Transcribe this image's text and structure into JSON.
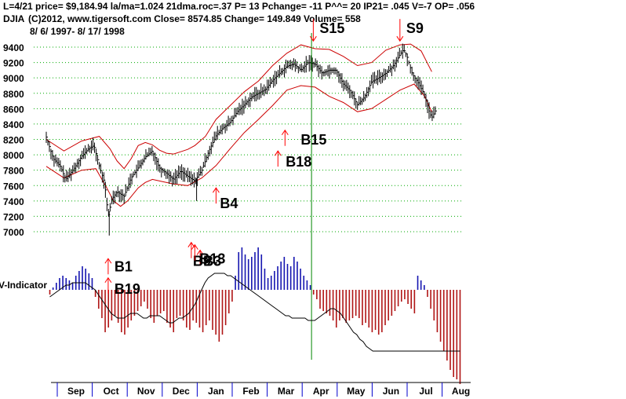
{
  "header": {
    "line1": "L=4/21  price= $9,184.94  la/ma=1.024 21dma.roc=.37 P=  13 Pchange= -11 P^^= 20 IP21= .045 V=-7 OP= .056",
    "symbol": "DJIA",
    "line2": "(C)2012, www.tigersoft.com    Close=  8574.85  Change= 149.849 Volume= 558",
    "date_range": "8/ 6/ 1997- 8/ 17/ 1998"
  },
  "colors": {
    "price": "#000000",
    "band": "#cc0000",
    "grid": "#00aa00",
    "signal": "#ff0000",
    "signal_text": "#000000",
    "ind_pos": "#1515b0",
    "ind_neg": "#b01515",
    "ind_ma": "#000000",
    "axis_blue": "#0000cc",
    "vline": "#008800"
  },
  "chart_data": {
    "type": "line",
    "title": "DJIA",
    "y_ticks": [
      "9400",
      "9200",
      "9000",
      "8800",
      "8600",
      "8400",
      "8200",
      "8000",
      "7800",
      "7600",
      "7400",
      "7200",
      "7000"
    ],
    "ylim": [
      7000,
      9400
    ],
    "xlim": [
      0,
      12
    ],
    "months": [
      "Sep",
      "Oct",
      "Nov",
      "Dec",
      "Jan",
      "Feb",
      "Mar",
      "Apr",
      "May",
      "Jun",
      "Jul",
      "Aug"
    ],
    "month_dividers": [
      0.5,
      1.5,
      2.5,
      3.5,
      4.5,
      5.5,
      6.5,
      7.5,
      8.5,
      9.5,
      10.5,
      11.5
    ],
    "price_series": {
      "name": "DJIA close",
      "points": [
        [
          0,
          8230
        ],
        [
          0.2,
          7950
        ],
        [
          0.4,
          7850
        ],
        [
          0.55,
          7680
        ],
        [
          0.8,
          7830
        ],
        [
          1.0,
          7980
        ],
        [
          1.2,
          8080
        ],
        [
          1.35,
          8120
        ],
        [
          1.5,
          7850
        ],
        [
          1.65,
          7640
        ],
        [
          1.75,
          7200
        ],
        [
          1.85,
          7420
        ],
        [
          2.0,
          7520
        ],
        [
          2.2,
          7460
        ],
        [
          2.4,
          7700
        ],
        [
          2.6,
          7830
        ],
        [
          2.8,
          7970
        ],
        [
          3.0,
          8050
        ],
        [
          3.2,
          7830
        ],
        [
          3.4,
          7760
        ],
        [
          3.6,
          7680
        ],
        [
          3.8,
          7790
        ],
        [
          4.0,
          7720
        ],
        [
          4.2,
          7660
        ],
        [
          4.4,
          7800
        ],
        [
          4.6,
          8050
        ],
        [
          4.8,
          8250
        ],
        [
          5.0,
          8350
        ],
        [
          5.2,
          8420
        ],
        [
          5.4,
          8560
        ],
        [
          5.6,
          8650
        ],
        [
          5.8,
          8750
        ],
        [
          6.0,
          8800
        ],
        [
          6.2,
          8850
        ],
        [
          6.4,
          8970
        ],
        [
          6.6,
          9060
        ],
        [
          6.8,
          9150
        ],
        [
          7.0,
          9180
        ],
        [
          7.2,
          9100
        ],
        [
          7.4,
          9200
        ],
        [
          7.6,
          9180
        ],
        [
          7.8,
          9060
        ],
        [
          8.0,
          9100
        ],
        [
          8.2,
          9100
        ],
        [
          8.4,
          8920
        ],
        [
          8.6,
          8830
        ],
        [
          8.8,
          8650
        ],
        [
          9.0,
          8750
        ],
        [
          9.2,
          8950
        ],
        [
          9.4,
          9000
        ],
        [
          9.6,
          9060
        ],
        [
          9.8,
          9150
        ],
        [
          10.0,
          9300
        ],
        [
          10.1,
          9370
        ],
        [
          10.2,
          9280
        ],
        [
          10.35,
          9050
        ],
        [
          10.5,
          8950
        ],
        [
          10.7,
          8780
        ],
        [
          10.8,
          8600
        ],
        [
          10.9,
          8480
        ],
        [
          11.0,
          8570
        ]
      ]
    },
    "upper_band": {
      "name": "upper band",
      "points": [
        [
          0,
          8200
        ],
        [
          0.5,
          8050
        ],
        [
          1.0,
          8180
        ],
        [
          1.5,
          8240
        ],
        [
          1.8,
          8080
        ],
        [
          2.0,
          7920
        ],
        [
          2.2,
          7820
        ],
        [
          2.4,
          7950
        ],
        [
          2.6,
          8120
        ],
        [
          2.8,
          8160
        ],
        [
          3.0,
          8130
        ],
        [
          3.2,
          8060
        ],
        [
          3.4,
          8020
        ],
        [
          3.6,
          8010
        ],
        [
          3.8,
          8040
        ],
        [
          4.0,
          8070
        ],
        [
          4.2,
          8120
        ],
        [
          4.5,
          8240
        ],
        [
          4.8,
          8460
        ],
        [
          5.2,
          8640
        ],
        [
          5.6,
          8820
        ],
        [
          6.0,
          8960
        ],
        [
          6.4,
          9160
        ],
        [
          6.8,
          9320
        ],
        [
          7.2,
          9430
        ],
        [
          7.6,
          9380
        ],
        [
          8.0,
          9370
        ],
        [
          8.4,
          9280
        ],
        [
          8.8,
          9160
        ],
        [
          9.2,
          9200
        ],
        [
          9.6,
          9360
        ],
        [
          10.0,
          9430
        ],
        [
          10.3,
          9440
        ],
        [
          10.6,
          9350
        ],
        [
          10.9,
          9080
        ]
      ]
    },
    "lower_band": {
      "name": "lower band",
      "points": [
        [
          0,
          7850
        ],
        [
          0.5,
          7700
        ],
        [
          1.0,
          7800
        ],
        [
          1.4,
          7820
        ],
        [
          1.7,
          7580
        ],
        [
          1.9,
          7400
        ],
        [
          2.1,
          7330
        ],
        [
          2.3,
          7400
        ],
        [
          2.6,
          7570
        ],
        [
          2.8,
          7640
        ],
        [
          3.0,
          7680
        ],
        [
          3.3,
          7650
        ],
        [
          3.6,
          7620
        ],
        [
          4.0,
          7600
        ],
        [
          4.4,
          7700
        ],
        [
          4.8,
          7860
        ],
        [
          5.2,
          8080
        ],
        [
          5.6,
          8290
        ],
        [
          6.0,
          8460
        ],
        [
          6.4,
          8640
        ],
        [
          6.8,
          8840
        ],
        [
          7.2,
          8900
        ],
        [
          7.6,
          8880
        ],
        [
          8.0,
          8760
        ],
        [
          8.4,
          8680
        ],
        [
          8.8,
          8560
        ],
        [
          9.2,
          8600
        ],
        [
          9.6,
          8720
        ],
        [
          10.0,
          8840
        ],
        [
          10.4,
          8920
        ],
        [
          10.7,
          8760
        ],
        [
          10.9,
          8560
        ]
      ]
    },
    "indicator": {
      "name": "V-Indicator",
      "label": "V-Indicator",
      "values": [
        -2,
        1,
        3,
        5,
        6,
        5,
        4,
        3,
        6,
        8,
        10,
        9,
        7,
        5,
        -3,
        -8,
        -12,
        -18,
        -16,
        -13,
        -11,
        -14,
        -18,
        -19,
        -16,
        -13,
        -11,
        -9,
        -7,
        -5,
        -8,
        -12,
        -14,
        -11,
        -10,
        -9,
        -14,
        -16,
        -18,
        -12,
        -11,
        -13,
        -16,
        -17,
        -13,
        -14,
        -16,
        -18,
        -15,
        -13,
        -17,
        -19,
        -22,
        -19,
        -15,
        -10,
        -5,
        6,
        16,
        18,
        15,
        13,
        14,
        16,
        18,
        15,
        9,
        5,
        6,
        8,
        10,
        12,
        14,
        11,
        10,
        14,
        12,
        9,
        6,
        4,
        2,
        -2,
        -4,
        -8,
        -9,
        -10,
        -11,
        -13,
        -16,
        -13,
        -12,
        -14,
        -13,
        -12,
        -11,
        -12,
        -15,
        -14,
        -16,
        -18,
        -17,
        -19,
        -18,
        -15,
        -13,
        -11,
        -9,
        -7,
        -5,
        -4,
        -6,
        -8,
        -10,
        6,
        4,
        2,
        -3,
        -8,
        -13,
        -18,
        -22,
        -26,
        -30,
        -34,
        -37,
        -38,
        -40
      ],
      "ma_values": [
        -3,
        -2,
        -1,
        0,
        1,
        2,
        2,
        3,
        3,
        3,
        3,
        3,
        2,
        1,
        0,
        -2,
        -4,
        -6,
        -8,
        -10,
        -11,
        -12,
        -12,
        -12,
        -11,
        -10,
        -10,
        -10,
        -11,
        -12,
        -12,
        -11,
        -11,
        -11,
        -11,
        -12,
        -13,
        -14,
        -14,
        -13,
        -12,
        -12,
        -11,
        -10,
        -8,
        -6,
        -3,
        0,
        3,
        5,
        6,
        7,
        7,
        7,
        7,
        6,
        6,
        5,
        4,
        3,
        2,
        1,
        0,
        -1,
        -2,
        -3,
        -4,
        -5,
        -6,
        -7,
        -8,
        -9,
        -10,
        -11,
        -11,
        -12,
        -12,
        -12,
        -12,
        -12,
        -13,
        -13,
        -13,
        -12,
        -11,
        -10,
        -9,
        -8,
        -8,
        -9,
        -10,
        -12,
        -14,
        -16,
        -18,
        -19,
        -21,
        -22,
        -24,
        -25,
        -26,
        -26,
        -26,
        -26,
        -26,
        -26,
        -26,
        -26,
        -26,
        -26,
        -26,
        -26,
        -26,
        -26,
        -26,
        -26,
        -26,
        -26,
        -26,
        -26,
        -26,
        -26,
        -26,
        -26,
        -26,
        -26,
        -26,
        -26
      ]
    },
    "signals": [
      {
        "label": "S15",
        "x": 7.55,
        "price": 9480,
        "dir": "down",
        "text_dx": 8,
        "text_dy": 0
      },
      {
        "label": "S9",
        "x": 10.0,
        "price": 9480,
        "dir": "down",
        "text_dx": 8,
        "text_dy": 0
      },
      {
        "label": "B15",
        "x": 6.75,
        "price": 8320,
        "dir": "up",
        "text_dx": 20,
        "text_dy": 10
      },
      {
        "label": "B18",
        "x": 6.55,
        "price": 8050,
        "dir": "up",
        "text_dx": 10,
        "text_dy": 12
      },
      {
        "label": "B4",
        "x": 4.8,
        "price": 7570,
        "dir": "up",
        "text_dx": 5,
        "text_dy": 18
      },
      {
        "label": "B1",
        "x": 1.75,
        "price": 6650,
        "dir": "up",
        "text_dx": 8,
        "text_dy": 8
      },
      {
        "label": "B19",
        "x": 1.75,
        "price": 6400,
        "dir": "up",
        "text_dx": 8,
        "text_dy": 12
      },
      {
        "label": "B3",
        "x": 4.35,
        "price": 6760,
        "dir": "up",
        "text_dx": 4,
        "text_dy": 12
      },
      {
        "label": "B9",
        "x": 4.1,
        "price": 6860,
        "dir": "up",
        "text_dx": 2,
        "text_dy": 22
      },
      {
        "label": "B13",
        "x": 4.2,
        "price": 6830,
        "dir": "up",
        "text_dx": 6,
        "text_dy": 16
      }
    ],
    "vertical_line_x": 7.5
  }
}
